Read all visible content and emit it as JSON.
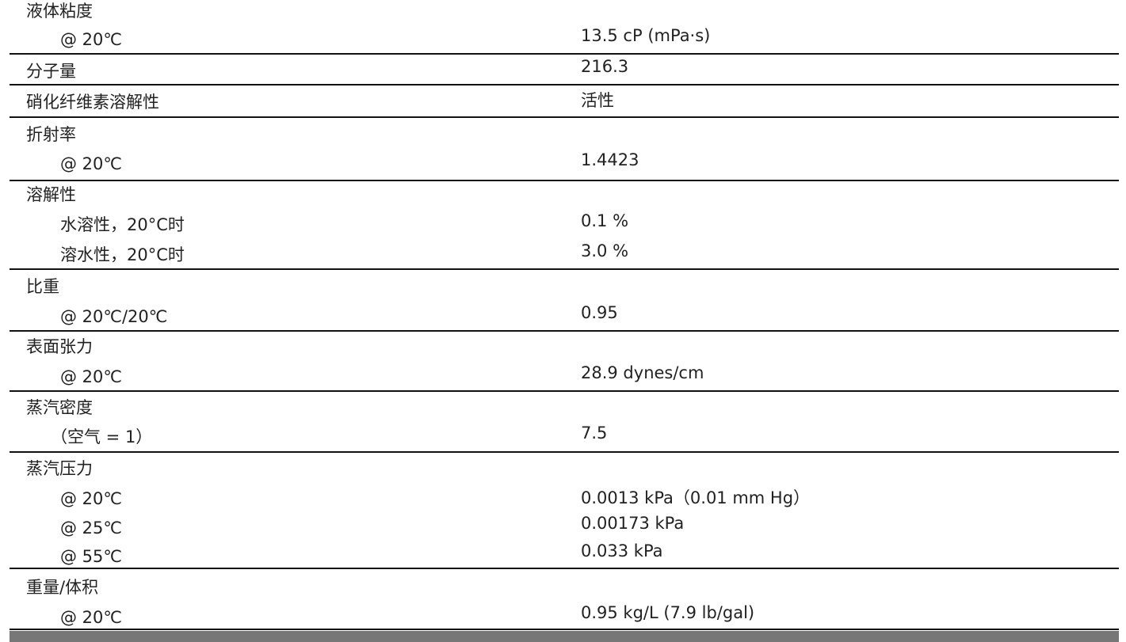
{
  "groups": [
    {
      "label": "液体粘度",
      "items": [
        {
          "label": "@ 20℃",
          "value": "13.5 cP (mPa·s)"
        }
      ]
    },
    {
      "label": "分子量",
      "value": "216.3"
    },
    {
      "label": "硝化纤维素溶解性",
      "value": "活性"
    },
    {
      "label": "折射率",
      "items": [
        {
          "label": "@ 20℃",
          "value": "1.4423"
        }
      ]
    },
    {
      "label": "溶解性",
      "items": [
        {
          "label": "水溶性，20°C时",
          "value": "0.1 %"
        },
        {
          "label": "溶水性，20°C时",
          "value": "3.0 %"
        }
      ]
    },
    {
      "label": "比重",
      "items": [
        {
          "label": "@ 20℃/20℃",
          "value": "0.95"
        }
      ]
    },
    {
      "label": "表面张力",
      "items": [
        {
          "label": "@ 20℃",
          "value": "28.9 dynes/cm"
        }
      ]
    },
    {
      "label": "蒸汽密度",
      "items": [
        {
          "label": "（空气 = 1）",
          "value": "7.5"
        }
      ]
    },
    {
      "label": "蒸汽压力",
      "items": [
        {
          "label": "@ 20℃",
          "value": "0.0013 kPa（0.01 mm Hg）"
        },
        {
          "label": "@ 25℃",
          "value": "0.00173 kPa"
        },
        {
          "label": "@ 55℃",
          "value": "0.033 kPa"
        }
      ]
    },
    {
      "label": "重量/体积",
      "items": [
        {
          "label": "@ 20℃",
          "value": "0.95 kg/L (7.9 lb/gal)"
        }
      ]
    }
  ]
}
